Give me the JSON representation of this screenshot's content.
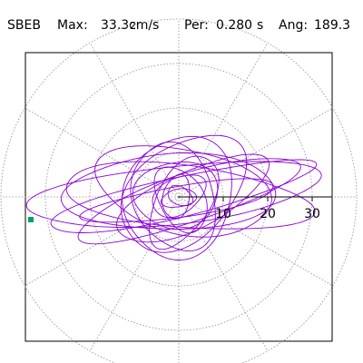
{
  "header": {
    "station": "SBEB",
    "max_label": "Max:",
    "max_value": "33.3",
    "max_unit": "cm/s",
    "max_unit_exp": "2",
    "per_label": "Per:",
    "per_value": "0.280",
    "per_unit": "s",
    "ang_label": "Ang:",
    "ang_value": "189.3"
  },
  "colors": {
    "trace": "#8a00d4",
    "grid": "#8c8c8c",
    "marker": "#009e73",
    "axis": "#000000"
  },
  "chart_data": {
    "type": "polar-orbit",
    "title": "",
    "radial_ticks": [
      "10",
      "20",
      "30"
    ],
    "radial_range": [
      0,
      40
    ],
    "angular_grid_step_deg": 30,
    "grid": true,
    "peak_amplitude": 33.3,
    "peak_angle_deg": 189.3,
    "marker_radius": 33.3,
    "marker_angle_deg": 180,
    "orbits": [
      {
        "a": 33.0,
        "b": 6.5,
        "rot": 6,
        "cx": -1.0,
        "cy": 0.6
      },
      {
        "a": 30.5,
        "b": 4.5,
        "rot": 13,
        "cx": 0.0,
        "cy": 0.0
      },
      {
        "a": 28.0,
        "b": 7.0,
        "rot": -6,
        "cx": 1.5,
        "cy": 0.0
      },
      {
        "a": 26.0,
        "b": 5.5,
        "rot": 18,
        "cx": 2.0,
        "cy": -0.5
      },
      {
        "a": 24.0,
        "b": 8.5,
        "rot": 2,
        "cx": -1.5,
        "cy": 1.0
      },
      {
        "a": 22.0,
        "b": 3.5,
        "rot": 9,
        "cx": 0.5,
        "cy": -1.0
      },
      {
        "a": 20.0,
        "b": 9.5,
        "rot": -12,
        "cx": 1.0,
        "cy": 1.5
      },
      {
        "a": 18.5,
        "b": 6.5,
        "rot": 25,
        "cx": 3.0,
        "cy": -0.5
      },
      {
        "a": 16.0,
        "b": 10.5,
        "rot": 40,
        "cx": 1.0,
        "cy": 1.0
      },
      {
        "a": 14.0,
        "b": 12.0,
        "rot": 70,
        "cx": 0.0,
        "cy": 0.0
      },
      {
        "a": 12.5,
        "b": 9.0,
        "rot": 110,
        "cx": -1.0,
        "cy": 0.0
      },
      {
        "a": 11.5,
        "b": 6.0,
        "rot": 60,
        "cx": 1.0,
        "cy": -1.0
      },
      {
        "a": 9.5,
        "b": 7.5,
        "rot": 5,
        "cx": -0.5,
        "cy": 0.5
      },
      {
        "a": 8.0,
        "b": 5.0,
        "rot": 120,
        "cx": 0.5,
        "cy": -0.5
      },
      {
        "a": 6.5,
        "b": 4.0,
        "rot": 30,
        "cx": 0.0,
        "cy": 0.3
      },
      {
        "a": 5.0,
        "b": 3.0,
        "rot": 80,
        "cx": -0.5,
        "cy": 0.0
      },
      {
        "a": 4.0,
        "b": 2.0,
        "rot": 10,
        "cx": 0.0,
        "cy": -0.3
      },
      {
        "a": 3.0,
        "b": 2.0,
        "rot": 150,
        "cx": 0.3,
        "cy": 0.2
      }
    ]
  }
}
